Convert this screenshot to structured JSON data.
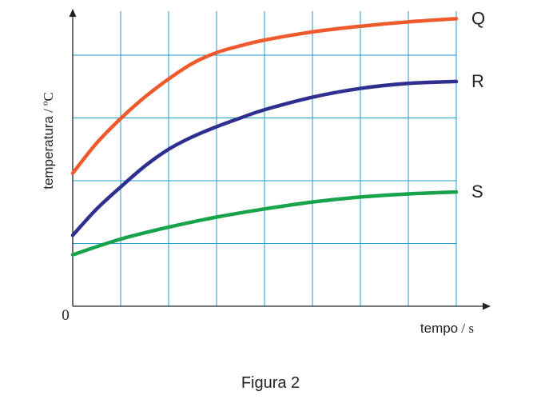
{
  "caption": "Figura 2",
  "chart_data": {
    "type": "line",
    "title": "",
    "xlabel": {
      "name": "tempo",
      "unit": "s"
    },
    "ylabel": {
      "name": "temperatura",
      "unit": "ºC"
    },
    "origin_label": "0",
    "xlim": [
      0,
      8
    ],
    "ylim": [
      0,
      4.7
    ],
    "x_grid": [
      1,
      2,
      3,
      4,
      5,
      6,
      7,
      8
    ],
    "y_grid": [
      1,
      2,
      3,
      4
    ],
    "grid": true,
    "grid_color": "#1e9fd0",
    "series": [
      {
        "name": "Q",
        "color": "#ee5a2c",
        "x": [
          0,
          0.5,
          1,
          1.5,
          2,
          2.5,
          3,
          3.5,
          4,
          5,
          6,
          7,
          8
        ],
        "y": [
          2.12,
          2.6,
          2.99,
          3.33,
          3.62,
          3.87,
          4.04,
          4.15,
          4.24,
          4.37,
          4.46,
          4.53,
          4.58
        ]
      },
      {
        "name": "R",
        "color": "#2f2f90",
        "x": [
          0,
          0.5,
          1,
          1.5,
          2,
          2.5,
          3,
          3.5,
          4,
          5,
          6,
          7,
          8
        ],
        "y": [
          1.13,
          1.55,
          1.9,
          2.23,
          2.5,
          2.7,
          2.86,
          3.0,
          3.13,
          3.33,
          3.47,
          3.55,
          3.58
        ]
      },
      {
        "name": "S",
        "color": "#16a34a",
        "x": [
          0,
          1,
          2,
          3,
          4,
          5,
          6,
          7,
          8
        ],
        "y": [
          0.82,
          1.07,
          1.26,
          1.42,
          1.55,
          1.66,
          1.74,
          1.79,
          1.82
        ]
      }
    ]
  }
}
